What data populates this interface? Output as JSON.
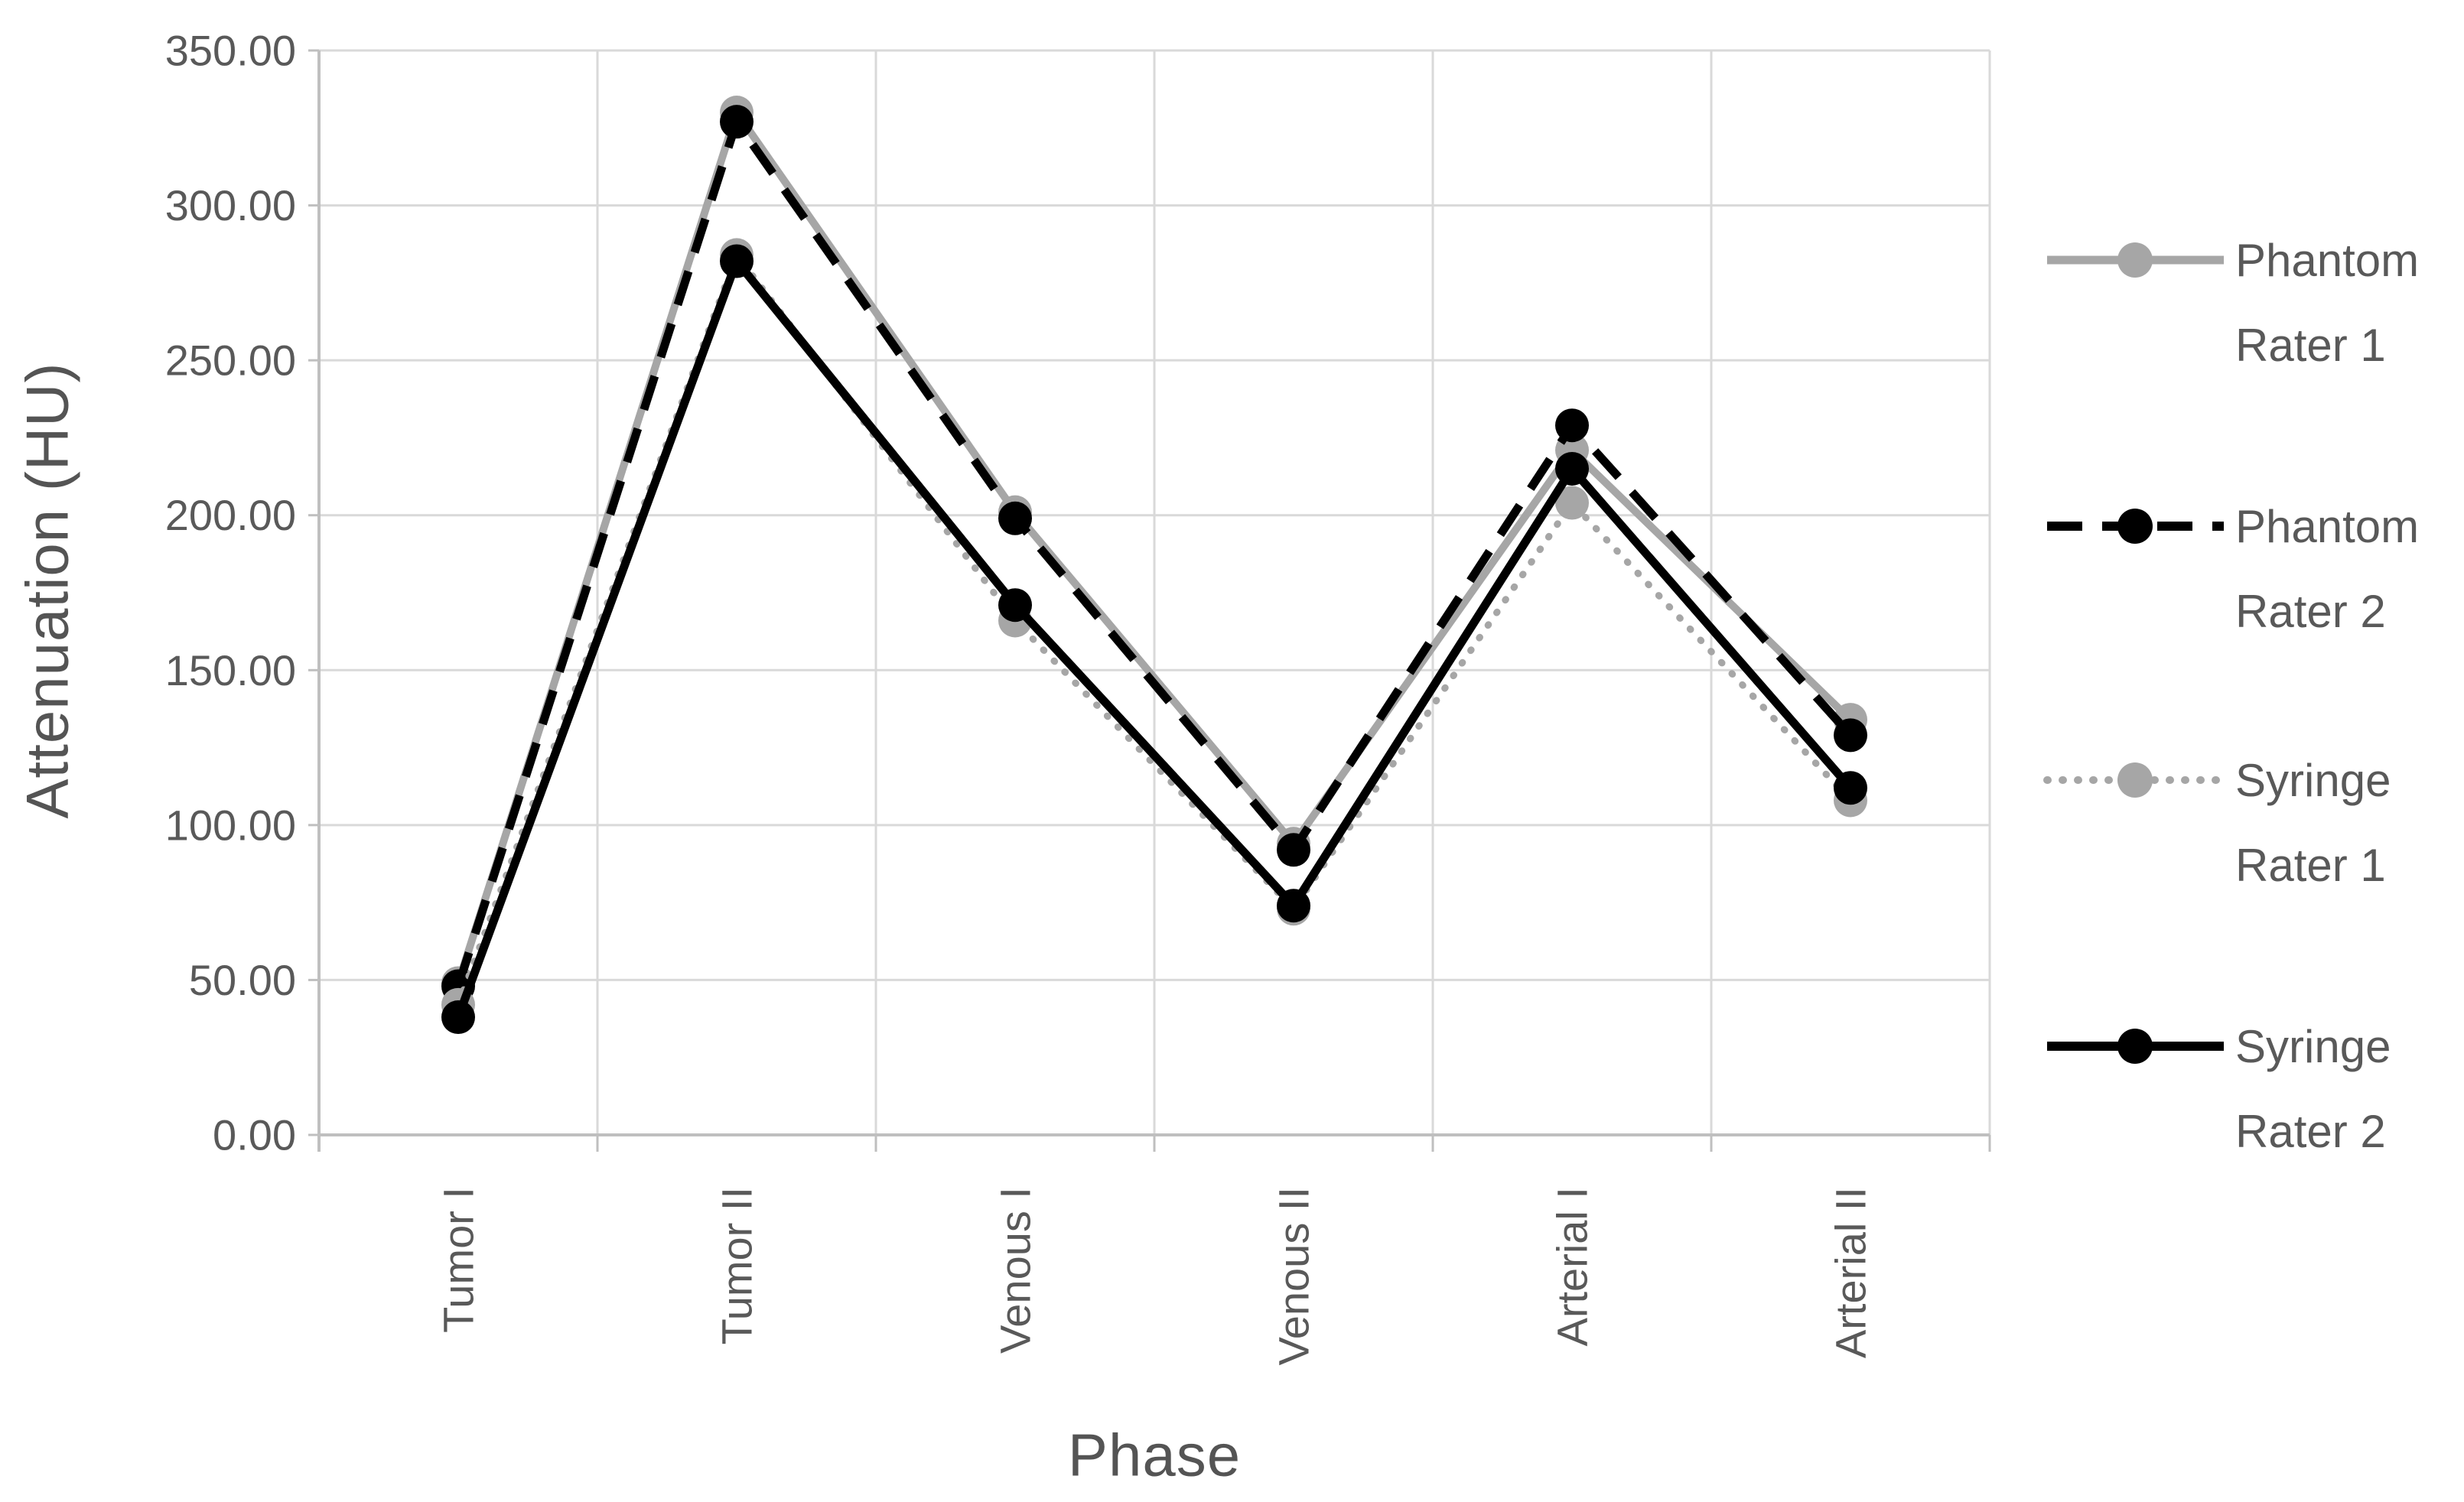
{
  "chart_data": {
    "type": "line",
    "title": "",
    "xlabel": "Phase",
    "ylabel": "Attenuation (HU)",
    "categories": [
      "Tumor I",
      "Tumor II",
      "Venous I",
      "Venous II",
      "Arterial I",
      "Arterial II"
    ],
    "y_ticks": [
      "350.00",
      "300.00",
      "250.00",
      "200.00",
      "150.00",
      "100.00",
      "50.00",
      "0.00"
    ],
    "ylim": [
      0,
      350
    ],
    "y_step": 50,
    "grid": true,
    "legend_position": "right",
    "series": [
      {
        "name": "Phantom Rater 1",
        "legend_lines": [
          "Phantom",
          "Rater 1"
        ],
        "values": [
          49,
          330,
          201,
          94,
          221,
          134
        ],
        "color": "#a6a6a6",
        "style": "solid",
        "line_width": 10,
        "marker": "circle"
      },
      {
        "name": "Phantom Rater 2",
        "legend_lines": [
          "Phantom",
          "Rater 2"
        ],
        "values": [
          48,
          327,
          199,
          92,
          229,
          129
        ],
        "color": "#000000",
        "style": "dashed",
        "line_width": 11,
        "marker": "circle"
      },
      {
        "name": "Syringe Rater 1",
        "legend_lines": [
          "Syringe",
          "Rater 1"
        ],
        "values": [
          42,
          284,
          166,
          73,
          204,
          108
        ],
        "color": "#a6a6a6",
        "style": "dotted",
        "line_width": 9,
        "marker": "circle"
      },
      {
        "name": "Syringe Rater 2",
        "legend_lines": [
          "Syringe",
          "Rater 2"
        ],
        "values": [
          38,
          282,
          171,
          74,
          215,
          112
        ],
        "color": "#000000",
        "style": "solid",
        "line_width": 11,
        "marker": "circle"
      }
    ],
    "colors": {
      "gridline": "#d9d9d9",
      "axis_line": "#bfbfbf",
      "tick_text": "#595959",
      "title_text": "#545454",
      "background": "#ffffff"
    }
  }
}
